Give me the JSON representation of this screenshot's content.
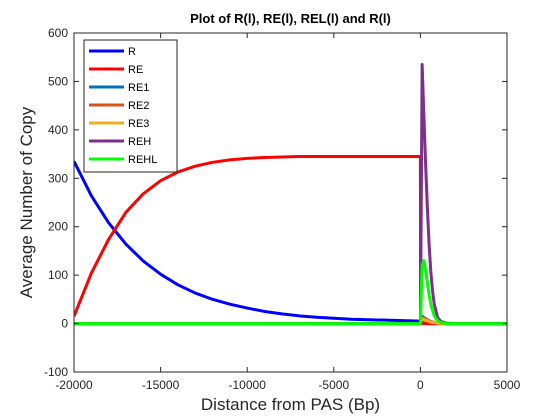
{
  "chart_data": {
    "type": "line",
    "title": "Plot of R(l), RE(l), REL(l) and R(l)",
    "xlabel": "Distance from PAS (Bp)",
    "ylabel": "Average Number of Copy",
    "xlim": [
      -20000,
      5000
    ],
    "ylim": [
      -100,
      600
    ],
    "xticks": [
      -20000,
      -15000,
      -10000,
      -5000,
      0,
      5000
    ],
    "yticks": [
      -100,
      0,
      100,
      200,
      300,
      400,
      500,
      600
    ],
    "xtick_labels": [
      "-20000",
      "-15000",
      "-10000",
      "-5000",
      "0",
      "5000"
    ],
    "ytick_labels": [
      "-100",
      "0",
      "100",
      "200",
      "300",
      "400",
      "500",
      "600"
    ],
    "grid": false,
    "legend_position": "top-left",
    "series": [
      {
        "name": "R",
        "color": "#0000ff",
        "x": [
          -20000,
          -19000,
          -18000,
          -17000,
          -16000,
          -15000,
          -14000,
          -13000,
          -12000,
          -11000,
          -10000,
          -9000,
          -8000,
          -7000,
          -6000,
          -5000,
          -4000,
          -3000,
          -2000,
          -1000,
          0,
          100,
          200,
          400,
          700,
          1000,
          1500,
          2000,
          3000,
          4000,
          5000
        ],
        "y": [
          335,
          264,
          208,
          164,
          129,
          102,
          80,
          63,
          50,
          40,
          32,
          25,
          20,
          16,
          13,
          11,
          9,
          8,
          7,
          6,
          5,
          3,
          1,
          0,
          0,
          0,
          0,
          0,
          0,
          0,
          0
        ]
      },
      {
        "name": "RE",
        "color": "#ff0000",
        "x": [
          -20000,
          -19000,
          -18000,
          -17000,
          -16000,
          -15000,
          -14000,
          -13000,
          -12000,
          -11000,
          -10000,
          -9000,
          -8000,
          -7000,
          -6000,
          -5000,
          -4000,
          -3000,
          -2000,
          -1000,
          0,
          10,
          100,
          300,
          600,
          1000,
          2000,
          3000,
          4000,
          5000
        ],
        "y": [
          15,
          104,
          174,
          230,
          268,
          295,
          313,
          325,
          333,
          338,
          341,
          343,
          344,
          345,
          345,
          345,
          345,
          345,
          345,
          345,
          345,
          0,
          0,
          0,
          0,
          0,
          0,
          0,
          0,
          0
        ]
      },
      {
        "name": "RE1",
        "color": "#0072bd",
        "x": [
          -20000,
          0,
          100,
          300,
          600,
          1000,
          1500,
          5000
        ],
        "y": [
          0,
          0,
          15,
          10,
          4,
          1,
          0,
          0
        ]
      },
      {
        "name": "RE2",
        "color": "#d95319",
        "x": [
          -20000,
          0,
          100,
          300,
          600,
          1000,
          1500,
          5000
        ],
        "y": [
          0,
          0,
          12,
          9,
          4,
          1,
          0,
          0
        ]
      },
      {
        "name": "RE3",
        "color": "#edb120",
        "x": [
          -20000,
          0,
          100,
          300,
          600,
          1000,
          1500,
          5000
        ],
        "y": [
          0,
          0,
          10,
          7,
          3,
          1,
          0,
          0
        ]
      },
      {
        "name": "REH",
        "color": "#7e2f8e",
        "x": [
          -20000,
          0,
          50,
          100,
          200,
          300,
          400,
          500,
          600,
          700,
          800,
          1000,
          1200,
          1500,
          2000,
          5000
        ],
        "y": [
          0,
          0,
          250,
          535,
          430,
          330,
          240,
          165,
          108,
          68,
          40,
          12,
          4,
          1,
          0,
          0
        ]
      },
      {
        "name": "REHL",
        "color": "#00ff00",
        "x": [
          -20000,
          0,
          50,
          100,
          200,
          300,
          400,
          500,
          600,
          800,
          1000,
          1200,
          1500,
          2000,
          5000
        ],
        "y": [
          0,
          0,
          60,
          120,
          130,
          110,
          85,
          60,
          40,
          16,
          6,
          2,
          0,
          0,
          0
        ]
      }
    ]
  }
}
